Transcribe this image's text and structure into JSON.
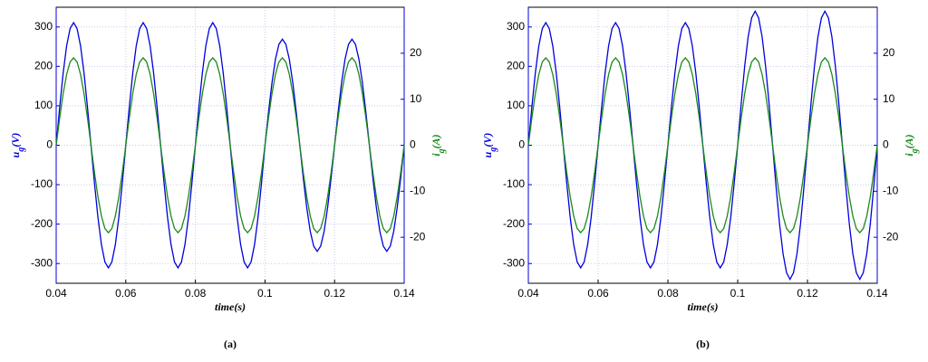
{
  "chart_data": [
    {
      "type": "line",
      "caption": "(a)",
      "xlabel": "time(s)",
      "ylabel": [
        "u",
        "g",
        "(V)"
      ],
      "y2label": [
        "i",
        "g",
        "(A)"
      ],
      "xlim": [
        0.04,
        0.14
      ],
      "xticks": [
        0.04,
        0.06,
        0.08,
        0.1,
        0.12,
        0.14
      ],
      "ylim": [
        -350,
        350
      ],
      "yticks": [
        -300,
        -200,
        -100,
        0,
        100,
        200,
        300
      ],
      "y2lim": [
        -30,
        30
      ],
      "y2ticks": [
        -20,
        -10,
        0,
        10,
        20
      ],
      "grid": true,
      "x": [
        0.04,
        0.041,
        0.042,
        0.043,
        0.044,
        0.045,
        0.046,
        0.047,
        0.048,
        0.049,
        0.05,
        0.051,
        0.052,
        0.053,
        0.054,
        0.055,
        0.056,
        0.057,
        0.058,
        0.059,
        0.06,
        0.061,
        0.062,
        0.063,
        0.064,
        0.065,
        0.066,
        0.067,
        0.068,
        0.069,
        0.07,
        0.071,
        0.072,
        0.073,
        0.074,
        0.075,
        0.076,
        0.077,
        0.078,
        0.079,
        0.08,
        0.081,
        0.082,
        0.083,
        0.084,
        0.085,
        0.086,
        0.087,
        0.088,
        0.089,
        0.09,
        0.091,
        0.092,
        0.093,
        0.094,
        0.095,
        0.096,
        0.097,
        0.098,
        0.099,
        0.1,
        0.101,
        0.102,
        0.103,
        0.104,
        0.105,
        0.106,
        0.107,
        0.108,
        0.109,
        0.11,
        0.111,
        0.112,
        0.113,
        0.114,
        0.115,
        0.116,
        0.117,
        0.118,
        0.119,
        0.12,
        0.121,
        0.122,
        0.123,
        0.124,
        0.125,
        0.126,
        0.127,
        0.128,
        0.129,
        0.13,
        0.131,
        0.132,
        0.133,
        0.134,
        0.135,
        0.136,
        0.137,
        0.138,
        0.139,
        0.14
      ],
      "series": [
        {
          "color": "#0000dd",
          "values": [
            0,
            96,
            183,
            252,
            296,
            311,
            296,
            252,
            183,
            96,
            0,
            -96,
            -183,
            -252,
            -296,
            -311,
            -296,
            -252,
            -183,
            -96,
            0,
            96,
            183,
            252,
            296,
            311,
            296,
            252,
            183,
            96,
            0,
            -96,
            -183,
            -252,
            -296,
            -311,
            -296,
            -252,
            -183,
            -96,
            0,
            96,
            183,
            252,
            296,
            311,
            296,
            252,
            183,
            96,
            0,
            -96,
            -183,
            -252,
            -296,
            -311,
            -296,
            -252,
            -183,
            -96,
            0,
            83,
            158,
            218,
            256,
            269,
            256,
            218,
            158,
            83,
            0,
            -83,
            -158,
            -218,
            -256,
            -269,
            -256,
            -218,
            -158,
            -83,
            0,
            83,
            158,
            218,
            256,
            269,
            256,
            218,
            158,
            83,
            0,
            -83,
            -158,
            -218,
            -256,
            -269,
            -256,
            -218,
            -158,
            -83,
            0
          ]
        },
        {
          "color": "#1a8a1a",
          "axis": "y2",
          "values": [
            0,
            5.9,
            11.2,
            15.4,
            18.1,
            19,
            18.1,
            15.4,
            11.2,
            5.9,
            0,
            -5.9,
            -11.2,
            -15.4,
            -18.1,
            -19,
            -18.1,
            -15.4,
            -11.2,
            -5.9,
            0,
            5.9,
            11.2,
            15.4,
            18.1,
            19,
            18.1,
            15.4,
            11.2,
            5.9,
            0,
            -5.9,
            -11.2,
            -15.4,
            -18.1,
            -19,
            -18.1,
            -15.4,
            -11.2,
            -5.9,
            0,
            5.9,
            11.2,
            15.4,
            18.1,
            19,
            18.1,
            15.4,
            11.2,
            5.9,
            0,
            -5.9,
            -11.2,
            -15.4,
            -18.1,
            -19,
            -18.1,
            -15.4,
            -11.2,
            -5.9,
            0,
            5.9,
            11.2,
            15.4,
            18.1,
            19,
            18.1,
            15.4,
            11.2,
            5.9,
            0,
            -5.9,
            -11.2,
            -15.4,
            -18.1,
            -19,
            -18.1,
            -15.4,
            -11.2,
            -5.9,
            0,
            5.9,
            11.2,
            15.4,
            18.1,
            19,
            18.1,
            15.4,
            11.2,
            5.9,
            0,
            -5.9,
            -11.2,
            -15.4,
            -18.1,
            -19,
            -18.1,
            -15.4,
            -11.2,
            -5.9,
            0
          ]
        }
      ]
    },
    {
      "type": "line",
      "caption": "(b)",
      "xlabel": "time(s)",
      "ylabel": [
        "u",
        "g",
        "(V)"
      ],
      "y2label": [
        "i",
        "g",
        "(A)"
      ],
      "xlim": [
        0.04,
        0.14
      ],
      "xticks": [
        0.04,
        0.06,
        0.08,
        0.1,
        0.12,
        0.14
      ],
      "ylim": [
        -350,
        350
      ],
      "yticks": [
        -300,
        -200,
        -100,
        0,
        100,
        200,
        300
      ],
      "y2lim": [
        -30,
        30
      ],
      "y2ticks": [
        -20,
        -10,
        0,
        10,
        20
      ],
      "grid": true,
      "x": [
        0.04,
        0.041,
        0.042,
        0.043,
        0.044,
        0.045,
        0.046,
        0.047,
        0.048,
        0.049,
        0.05,
        0.051,
        0.052,
        0.053,
        0.054,
        0.055,
        0.056,
        0.057,
        0.058,
        0.059,
        0.06,
        0.061,
        0.062,
        0.063,
        0.064,
        0.065,
        0.066,
        0.067,
        0.068,
        0.069,
        0.07,
        0.071,
        0.072,
        0.073,
        0.074,
        0.075,
        0.076,
        0.077,
        0.078,
        0.079,
        0.08,
        0.081,
        0.082,
        0.083,
        0.084,
        0.085,
        0.086,
        0.087,
        0.088,
        0.089,
        0.09,
        0.091,
        0.092,
        0.093,
        0.094,
        0.095,
        0.096,
        0.097,
        0.098,
        0.099,
        0.1,
        0.101,
        0.102,
        0.103,
        0.104,
        0.105,
        0.106,
        0.107,
        0.108,
        0.109,
        0.11,
        0.111,
        0.112,
        0.113,
        0.114,
        0.115,
        0.116,
        0.117,
        0.118,
        0.119,
        0.12,
        0.121,
        0.122,
        0.123,
        0.124,
        0.125,
        0.126,
        0.127,
        0.128,
        0.129,
        0.13,
        0.131,
        0.132,
        0.133,
        0.134,
        0.135,
        0.136,
        0.137,
        0.138,
        0.139,
        0.14
      ],
      "series": [
        {
          "color": "#0000dd",
          "values": [
            0,
            96,
            183,
            252,
            296,
            311,
            296,
            252,
            183,
            96,
            0,
            -96,
            -183,
            -252,
            -296,
            -311,
            -296,
            -252,
            -183,
            -96,
            0,
            96,
            183,
            252,
            296,
            311,
            296,
            252,
            183,
            96,
            0,
            -96,
            -183,
            -252,
            -296,
            -311,
            -296,
            -252,
            -183,
            -96,
            0,
            96,
            183,
            252,
            296,
            311,
            296,
            252,
            183,
            96,
            0,
            -96,
            -183,
            -252,
            -296,
            -311,
            -296,
            -252,
            -183,
            -96,
            0,
            105,
            200,
            275,
            323,
            340,
            323,
            275,
            200,
            105,
            0,
            -105,
            -200,
            -275,
            -323,
            -340,
            -323,
            -275,
            -200,
            -105,
            0,
            105,
            200,
            275,
            323,
            340,
            323,
            275,
            200,
            105,
            0,
            -105,
            -200,
            -275,
            -323,
            -340,
            -323,
            -275,
            -200,
            -105,
            0
          ]
        },
        {
          "color": "#1a8a1a",
          "axis": "y2",
          "values": [
            0,
            5.9,
            11.2,
            15.4,
            18.1,
            19,
            18.1,
            15.4,
            11.2,
            5.9,
            0,
            -5.9,
            -11.2,
            -15.4,
            -18.1,
            -19,
            -18.1,
            -15.4,
            -11.2,
            -5.9,
            0,
            5.9,
            11.2,
            15.4,
            18.1,
            19,
            18.1,
            15.4,
            11.2,
            5.9,
            0,
            -5.9,
            -11.2,
            -15.4,
            -18.1,
            -19,
            -18.1,
            -15.4,
            -11.2,
            -5.9,
            0,
            5.9,
            11.2,
            15.4,
            18.1,
            19,
            18.1,
            15.4,
            11.2,
            5.9,
            0,
            -5.9,
            -11.2,
            -15.4,
            -18.1,
            -19,
            -18.1,
            -15.4,
            -11.2,
            -5.9,
            0,
            5.9,
            11.2,
            15.4,
            18.1,
            19,
            18.1,
            15.4,
            11.2,
            5.9,
            0,
            -5.9,
            -11.2,
            -15.4,
            -18.1,
            -19,
            -18.1,
            -15.4,
            -11.2,
            -5.9,
            0,
            5.9,
            11.2,
            15.4,
            18.1,
            19,
            18.1,
            15.4,
            11.2,
            5.9,
            0,
            -5.9,
            -11.2,
            -15.4,
            -18.1,
            -19,
            -18.1,
            -15.4,
            -11.2,
            -5.9,
            0
          ]
        }
      ]
    }
  ]
}
